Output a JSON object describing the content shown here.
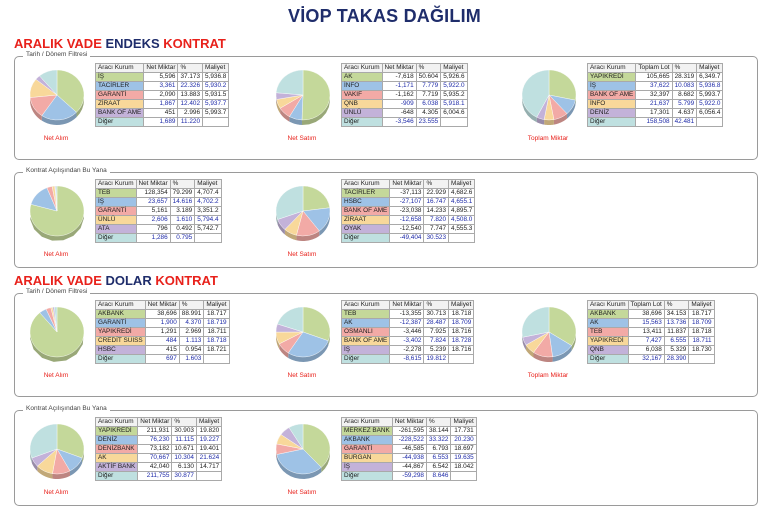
{
  "title": "VİOP TAKAS DAĞILIM",
  "sections": [
    {
      "heading": {
        "p1": "ARALIK VADE ",
        "p2": "ENDEKS ",
        "p3": "KONTRAT"
      },
      "panels": [
        {
          "legend": "Tarih / Dönem Filtresi",
          "blocks": [
            {
              "caption": "Net Alım",
              "headers": [
                "Aracı Kurum",
                "Net Miktar",
                "%",
                "Maliyet"
              ],
              "rows": [
                {
                  "name": "İŞ",
                  "v1": "5,596",
                  "v2": "37.173",
                  "v3": "5,936.8",
                  "color": "#c4d89a"
                },
                {
                  "name": "TACİRLER",
                  "v1": "3,361",
                  "v2": "22.326",
                  "v3": "5,930.2",
                  "color": "#9ec2e6"
                },
                {
                  "name": "GARANTİ",
                  "v1": "2,090",
                  "v2": "13.883",
                  "v3": "5,931.5",
                  "color": "#f2aaa6"
                },
                {
                  "name": "ZİRAAT",
                  "v1": "1,867",
                  "v2": "12.402",
                  "v3": "5,937.7",
                  "color": "#f8d89a"
                },
                {
                  "name": "BANK OF AME",
                  "v1": "451",
                  "v2": "2.996",
                  "v3": "5,993.7",
                  "color": "#c3b2d9"
                },
                {
                  "name": "Diğer",
                  "v1": "1,689",
                  "v2": "11.220",
                  "v3": "",
                  "color": "#bfe0e0"
                }
              ],
              "slices": [
                37.173,
                22.326,
                13.883,
                12.402,
                2.996,
                11.22
              ]
            },
            {
              "caption": "Net Satım",
              "headers": [
                "Aracı Kurum",
                "Net Miktar",
                "%",
                "Maliyet"
              ],
              "rows": [
                {
                  "name": "AK",
                  "v1": "-7,618",
                  "v2": "50.604",
                  "v3": "5,926.6",
                  "color": "#c4d89a"
                },
                {
                  "name": "İNFO",
                  "v1": "-1,171",
                  "v2": "7.779",
                  "v3": "5,922.0",
                  "color": "#9ec2e6"
                },
                {
                  "name": "VAKIF",
                  "v1": "-1,162",
                  "v2": "7.719",
                  "v3": "5,935.2",
                  "color": "#f2aaa6"
                },
                {
                  "name": "QNB",
                  "v1": "-909",
                  "v2": "6.038",
                  "v3": "5,918.1",
                  "color": "#f8d89a"
                },
                {
                  "name": "ÜNLÜ",
                  "v1": "-648",
                  "v2": "4.305",
                  "v3": "6,004.6",
                  "color": "#c3b2d9"
                },
                {
                  "name": "Diğer",
                  "v1": "-3,546",
                  "v2": "23.555",
                  "v3": "",
                  "color": "#bfe0e0"
                }
              ],
              "slices": [
                50.604,
                7.779,
                7.719,
                6.038,
                4.305,
                23.555
              ]
            },
            {
              "caption": "Toplam Miktar",
              "headers": [
                "Aracı Kurum",
                "Toplam Lot",
                "%",
                "Maliyet"
              ],
              "rows": [
                {
                  "name": "YAPIKREDİ",
                  "v1": "105,665",
                  "v2": "28.319",
                  "v3": "6,349.7",
                  "color": "#c4d89a"
                },
                {
                  "name": "İŞ",
                  "v1": "37,622",
                  "v2": "10.083",
                  "v3": "5,936.8",
                  "color": "#9ec2e6"
                },
                {
                  "name": "BANK OF AME",
                  "v1": "32,397",
                  "v2": "8.682",
                  "v3": "5,993.7",
                  "color": "#f2aaa6"
                },
                {
                  "name": "İNFO",
                  "v1": "21,637",
                  "v2": "5.799",
                  "v3": "5,922.0",
                  "color": "#f8d89a"
                },
                {
                  "name": "DENİZ",
                  "v1": "17,301",
                  "v2": "4.637",
                  "v3": "6,056.4",
                  "color": "#c3b2d9"
                },
                {
                  "name": "Diğer",
                  "v1": "158,508",
                  "v2": "42.481",
                  "v3": "",
                  "color": "#bfe0e0"
                }
              ],
              "slices": [
                28.319,
                10.083,
                8.682,
                5.799,
                4.637,
                42.481
              ]
            }
          ]
        },
        {
          "legend": "Kontrat Açılışından Bu Yana",
          "blocks": [
            {
              "caption": "Net Alım",
              "headers": [
                "Aracı Kurum",
                "Net Miktar",
                "%",
                "Maliyet"
              ],
              "rows": [
                {
                  "name": "TEB",
                  "v1": "128,354",
                  "v2": "79.299",
                  "v3": "4,707.4",
                  "color": "#c4d89a"
                },
                {
                  "name": "İŞ",
                  "v1": "23,657",
                  "v2": "14.616",
                  "v3": "4,702.2",
                  "color": "#9ec2e6"
                },
                {
                  "name": "GARANTİ",
                  "v1": "5,161",
                  "v2": "3.189",
                  "v3": "3,351.2",
                  "color": "#f2aaa6"
                },
                {
                  "name": "ÜNLÜ",
                  "v1": "2,606",
                  "v2": "1.610",
                  "v3": "5,794.4",
                  "color": "#f8d89a"
                },
                {
                  "name": "ATA",
                  "v1": "796",
                  "v2": "0.492",
                  "v3": "5,742.7",
                  "color": "#c3b2d9"
                },
                {
                  "name": "Diğer",
                  "v1": "1,286",
                  "v2": "0.795",
                  "v3": "",
                  "color": "#bfe0e0"
                }
              ],
              "slices": [
                79.299,
                14.616,
                3.189,
                1.61,
                0.492,
                0.795
              ]
            },
            {
              "caption": "Net Satım",
              "headers": [
                "Aracı Kurum",
                "Net Miktar",
                "%",
                "Maliyet"
              ],
              "rows": [
                {
                  "name": "TACİRLER",
                  "v1": "-37,113",
                  "v2": "22.929",
                  "v3": "4,682.6",
                  "color": "#c4d89a"
                },
                {
                  "name": "HSBC",
                  "v1": "-27,107",
                  "v2": "16.747",
                  "v3": "4,655.1",
                  "color": "#9ec2e6"
                },
                {
                  "name": "BANK OF AME",
                  "v1": "-23,038",
                  "v2": "14.233",
                  "v3": "4,895.7",
                  "color": "#f2aaa6"
                },
                {
                  "name": "ZİRAAT",
                  "v1": "-12,658",
                  "v2": "7.820",
                  "v3": "4,508.0",
                  "color": "#f8d89a"
                },
                {
                  "name": "OYAK",
                  "v1": "-12,540",
                  "v2": "7.747",
                  "v3": "4,555.3",
                  "color": "#c3b2d9"
                },
                {
                  "name": "Diğer",
                  "v1": "-49,404",
                  "v2": "30.523",
                  "v3": "",
                  "color": "#bfe0e0"
                }
              ],
              "slices": [
                22.929,
                16.747,
                14.233,
                7.82,
                7.747,
                30.523
              ]
            }
          ]
        }
      ]
    },
    {
      "heading": {
        "p1": "ARALIK VADE ",
        "p2": "DOLAR ",
        "p3": "KONTRAT"
      },
      "panels": [
        {
          "legend": "Tarih / Dönem Filtresi",
          "blocks": [
            {
              "caption": "Net Alım",
              "headers": [
                "Aracı Kurum",
                "Net Miktar",
                "%",
                "Maliyet"
              ],
              "rows": [
                {
                  "name": "AKBANK",
                  "v1": "38,696",
                  "v2": "88.991",
                  "v3": "18.717",
                  "color": "#c4d89a"
                },
                {
                  "name": "GARANTİ",
                  "v1": "1,900",
                  "v2": "4.370",
                  "v3": "18.719",
                  "color": "#9ec2e6"
                },
                {
                  "name": "YAPIKREDİ",
                  "v1": "1,291",
                  "v2": "2.969",
                  "v3": "18.711",
                  "color": "#f2aaa6"
                },
                {
                  "name": "CREDİT SUISS",
                  "v1": "484",
                  "v2": "1.113",
                  "v3": "18.718",
                  "color": "#f8d89a"
                },
                {
                  "name": "HSBC",
                  "v1": "415",
                  "v2": "0.954",
                  "v3": "18.721",
                  "color": "#c3b2d9"
                },
                {
                  "name": "Diğer",
                  "v1": "697",
                  "v2": "1.603",
                  "v3": "",
                  "color": "#bfe0e0"
                }
              ],
              "slices": [
                88.991,
                4.37,
                2.969,
                1.113,
                0.954,
                1.603
              ]
            },
            {
              "caption": "Net Satım",
              "headers": [
                "Aracı Kurum",
                "Net Miktar",
                "%",
                "Maliyet"
              ],
              "rows": [
                {
                  "name": "TEB",
                  "v1": "-13,355",
                  "v2": "30.713",
                  "v3": "18.718",
                  "color": "#c4d89a"
                },
                {
                  "name": "AK",
                  "v1": "-12,387",
                  "v2": "28.487",
                  "v3": "18.709",
                  "color": "#9ec2e6"
                },
                {
                  "name": "OSMANLI",
                  "v1": "-3,446",
                  "v2": "7.925",
                  "v3": "18.716",
                  "color": "#f2aaa6"
                },
                {
                  "name": "BANK OF AME",
                  "v1": "-3,402",
                  "v2": "7.824",
                  "v3": "18.728",
                  "color": "#f8d89a"
                },
                {
                  "name": "İŞ",
                  "v1": "-2,278",
                  "v2": "5.239",
                  "v3": "18.716",
                  "color": "#c3b2d9"
                },
                {
                  "name": "Diğer",
                  "v1": "-8,615",
                  "v2": "19.812",
                  "v3": "",
                  "color": "#bfe0e0"
                }
              ],
              "slices": [
                30.713,
                28.487,
                7.925,
                7.824,
                5.239,
                19.812
              ]
            },
            {
              "caption": "Toplam Miktar",
              "headers": [
                "Aracı Kurum",
                "Toplam Lot",
                "%",
                "Maliyet"
              ],
              "rows": [
                {
                  "name": "AKBANK",
                  "v1": "38,696",
                  "v2": "34.153",
                  "v3": "18.717",
                  "color": "#c4d89a"
                },
                {
                  "name": "AK",
                  "v1": "15,563",
                  "v2": "13.736",
                  "v3": "18.709",
                  "color": "#9ec2e6"
                },
                {
                  "name": "TEB",
                  "v1": "13,411",
                  "v2": "11.837",
                  "v3": "18.718",
                  "color": "#f2aaa6"
                },
                {
                  "name": "YAPIKREDİ",
                  "v1": "7,427",
                  "v2": "6.555",
                  "v3": "18.711",
                  "color": "#f8d89a"
                },
                {
                  "name": "QNB",
                  "v1": "6,038",
                  "v2": "5.329",
                  "v3": "18.730",
                  "color": "#c3b2d9"
                },
                {
                  "name": "Diğer",
                  "v1": "32,167",
                  "v2": "28.390",
                  "v3": "",
                  "color": "#bfe0e0"
                }
              ],
              "slices": [
                34.153,
                13.736,
                11.837,
                6.555,
                5.329,
                28.39
              ]
            }
          ]
        },
        {
          "legend": "Kontrat Açılışından Bu Yana",
          "blocks": [
            {
              "caption": "Net Alım",
              "headers": [
                "Aracı Kurum",
                "Net Miktar",
                "%",
                "Maliyet"
              ],
              "rows": [
                {
                  "name": "YAPIKREDİ",
                  "v1": "211,931",
                  "v2": "30.903",
                  "v3": "19.820",
                  "color": "#c4d89a"
                },
                {
                  "name": "DENİZ",
                  "v1": "76,230",
                  "v2": "11.115",
                  "v3": "19.227",
                  "color": "#9ec2e6"
                },
                {
                  "name": "DENİZBANK",
                  "v1": "73,182",
                  "v2": "10.671",
                  "v3": "19.401",
                  "color": "#f2aaa6"
                },
                {
                  "name": "AK",
                  "v1": "70,667",
                  "v2": "10.304",
                  "v3": "21.624",
                  "color": "#f8d89a"
                },
                {
                  "name": "AKTİF BANK",
                  "v1": "42,040",
                  "v2": "6.130",
                  "v3": "14.717",
                  "color": "#c3b2d9"
                },
                {
                  "name": "Diğer",
                  "v1": "211,755",
                  "v2": "30.877",
                  "v3": "",
                  "color": "#bfe0e0"
                }
              ],
              "slices": [
                30.903,
                11.115,
                10.671,
                10.304,
                6.13,
                30.877
              ]
            },
            {
              "caption": "Net Satım",
              "headers": [
                "Aracı Kurum",
                "Net Miktar",
                "%",
                "Maliyet"
              ],
              "rows": [
                {
                  "name": "MERKEZ BANK",
                  "v1": "-261,595",
                  "v2": "38.144",
                  "v3": "17.731",
                  "color": "#c4d89a"
                },
                {
                  "name": "AKBANK",
                  "v1": "-228,522",
                  "v2": "33.322",
                  "v3": "20.230",
                  "color": "#9ec2e6"
                },
                {
                  "name": "GARANTİ",
                  "v1": "-46,585",
                  "v2": "6.793",
                  "v3": "18.697",
                  "color": "#f2aaa6"
                },
                {
                  "name": "BURGAN",
                  "v1": "-44,938",
                  "v2": "6.553",
                  "v3": "19.635",
                  "color": "#f8d89a"
                },
                {
                  "name": "İŞ",
                  "v1": "-44,867",
                  "v2": "6.542",
                  "v3": "18.042",
                  "color": "#c3b2d9"
                },
                {
                  "name": "Diğer",
                  "v1": "-59,298",
                  "v2": "8.646",
                  "v3": "",
                  "color": "#bfe0e0"
                }
              ],
              "slices": [
                38.144,
                33.322,
                6.793,
                6.553,
                6.542,
                8.646
              ]
            }
          ]
        }
      ]
    }
  ]
}
